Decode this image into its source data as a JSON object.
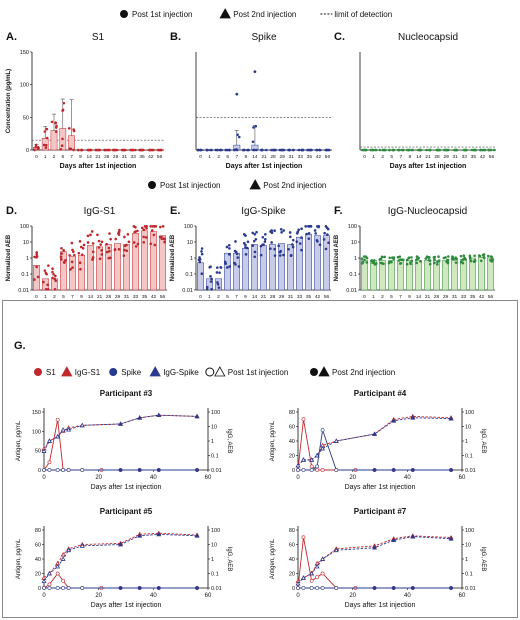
{
  "legends": {
    "top": [
      {
        "symbol": "circle",
        "label": "Post 1st injection"
      },
      {
        "symbol": "triangle",
        "label": "Post 2nd injection"
      },
      {
        "symbol": "dash",
        "label": "limit of detection"
      }
    ],
    "mid": [
      {
        "symbol": "circle",
        "label": "Post 1st injection"
      },
      {
        "symbol": "triangle",
        "label": "Post 2nd injection"
      }
    ],
    "g": [
      {
        "symbol": "circle",
        "color": "#c0282d",
        "label": "S1"
      },
      {
        "symbol": "triangle",
        "color": "#c0282d",
        "label": "IgG-S1"
      },
      {
        "symbol": "circle",
        "color": "#2a3a8f",
        "label": "Spike"
      },
      {
        "symbol": "triangle",
        "color": "#2a3a8f",
        "label": "IgG-Spike"
      },
      {
        "symbol": "open-pair",
        "label": "Post 1st injection"
      },
      {
        "symbol": "filled-pair",
        "label": "Post 2nd injection"
      }
    ]
  },
  "colors": {
    "red": "#c0282d",
    "blue": "#2a3a8f",
    "green": "#2e8b3e",
    "pink": "#f4c6c6",
    "lavender": "#c9cce9",
    "lightgreen": "#cfe8c0"
  },
  "chart_data": [
    {
      "panel": "A.",
      "title": "S1",
      "type": "bar",
      "ylabel": "Concentration (pg/mL)",
      "xlabel": "Days after 1st injection",
      "ylim": [
        0,
        150
      ],
      "yticks": [
        0,
        50,
        100,
        150
      ],
      "lod": 15,
      "categories": [
        "0",
        "1",
        "2",
        "5",
        "7",
        "9",
        "14",
        "21",
        "28",
        "29",
        "31",
        "33",
        "35",
        "42",
        "56"
      ],
      "values": [
        4,
        18,
        30,
        33,
        22,
        0,
        0,
        0,
        0,
        0,
        0,
        0,
        0,
        0,
        0
      ],
      "errors": [
        4,
        18,
        25,
        45,
        55,
        0,
        0,
        0,
        0,
        0,
        0,
        0,
        0,
        0,
        0
      ],
      "color": "red",
      "fill": "pink"
    },
    {
      "panel": "B.",
      "title": "Spike",
      "type": "bar",
      "ylabel": "",
      "xlabel": "Days after 1st injection",
      "ylim": [
        0,
        100
      ],
      "yticks": [],
      "lod": 33,
      "categories": [
        "0",
        "1",
        "2",
        "5",
        "7",
        "9",
        "14",
        "21",
        "28",
        "29",
        "31",
        "33",
        "35",
        "42",
        "56"
      ],
      "values": [
        0,
        0,
        0,
        0,
        5,
        0,
        5,
        0,
        0,
        0,
        0,
        0,
        0,
        0,
        0
      ],
      "errors": [
        0,
        0,
        0,
        0,
        15,
        0,
        20,
        0,
        0,
        0,
        0,
        0,
        0,
        0,
        0
      ],
      "color": "blue",
      "fill": "lavender"
    },
    {
      "panel": "C.",
      "title": "Nucleocapsid",
      "type": "bar",
      "ylabel": "",
      "xlabel": "Days after 1st injection",
      "ylim": [
        0,
        100
      ],
      "yticks": [],
      "lod": 3,
      "categories": [
        "0",
        "1",
        "2",
        "5",
        "7",
        "9",
        "14",
        "21",
        "28",
        "29",
        "31",
        "33",
        "35",
        "42",
        "56"
      ],
      "values": [
        0,
        0,
        0,
        0,
        0,
        0,
        0,
        0,
        0,
        0,
        0,
        0,
        0,
        0,
        0
      ],
      "errors": [
        0,
        0,
        0,
        0,
        0,
        0,
        0,
        0,
        0,
        0,
        0,
        0,
        0,
        0,
        0
      ],
      "color": "green",
      "fill": "lightgreen"
    },
    {
      "panel": "D.",
      "title": "IgG-S1",
      "type": "bar",
      "scale": "log",
      "ylabel": "Normalized AEB",
      "xlabel": "",
      "ylim": [
        0.01,
        100
      ],
      "yticks": [
        "0.01",
        "0.1",
        "1",
        "10",
        "100"
      ],
      "categories": [
        "0",
        "1",
        "2",
        "5",
        "7",
        "9",
        "14",
        "21",
        "28",
        "29",
        "31",
        "33",
        "35",
        "42",
        "56"
      ],
      "values": [
        0.35,
        0.05,
        0.05,
        2.5,
        1.3,
        1.5,
        6,
        5,
        7,
        8,
        7,
        35,
        50,
        45,
        25
      ],
      "color": "red",
      "fill": "pink"
    },
    {
      "panel": "E.",
      "title": "IgG-Spike",
      "type": "bar",
      "scale": "log",
      "ylabel": "Normalized AEB",
      "xlabel": "",
      "ylim": [
        0.01,
        100
      ],
      "yticks": [
        "0.01",
        "0.1",
        "1",
        "10",
        "100"
      ],
      "categories": [
        "0",
        "1",
        "2",
        "5",
        "7",
        "9",
        "14",
        "21",
        "28",
        "29",
        "31",
        "33",
        "35",
        "42",
        "56"
      ],
      "values": [
        0.5,
        0.05,
        0.05,
        2,
        2,
        4,
        7,
        6,
        7,
        8,
        7,
        20,
        30,
        25,
        25
      ],
      "color": "blue",
      "fill": "lavender"
    },
    {
      "panel": "F.",
      "title": "IgG-Nucleocapsid",
      "type": "bar",
      "scale": "log",
      "ylabel": "Normalized AEB",
      "xlabel": "",
      "ylim": [
        0.01,
        100
      ],
      "yticks": [
        "0.01",
        "0.1",
        "1",
        "10",
        "100"
      ],
      "categories": [
        "0",
        "1",
        "2",
        "5",
        "7",
        "9",
        "14",
        "21",
        "28",
        "29",
        "31",
        "33",
        "35",
        "42",
        "56"
      ],
      "values": [
        0.7,
        0.7,
        0.7,
        0.7,
        0.7,
        0.7,
        0.7,
        0.7,
        0.7,
        0.7,
        0.7,
        0.8,
        1.0,
        1.1,
        1.0
      ],
      "color": "green",
      "fill": "lightgreen"
    },
    {
      "panel": "G.",
      "title": "Participant #3",
      "type": "line",
      "ylabel": "Antigen, pg/mL",
      "y2label": "IgG, AEB",
      "xlabel": "Days after 1st injection",
      "xlim": [
        0,
        60
      ],
      "xticks": [
        "0",
        "20",
        "40",
        "60"
      ],
      "ylim": [
        0,
        150
      ],
      "yticks": [
        "0",
        "50",
        "100",
        "150"
      ],
      "y2ticks": [
        "100",
        "10",
        "1",
        "0.1",
        "0.01"
      ],
      "series": [
        {
          "name": "S1",
          "color": "red",
          "style": "solid",
          "x": [
            0,
            2,
            5,
            7,
            9,
            14,
            21,
            28,
            35,
            42,
            56
          ],
          "y": [
            0,
            20,
            130,
            0,
            0,
            0,
            0,
            0,
            0,
            0,
            0
          ]
        },
        {
          "name": "IgG-S1",
          "color": "red",
          "style": "dash",
          "x": [
            0,
            2,
            5,
            7,
            9,
            14,
            28,
            35,
            42,
            56
          ],
          "y2": [
            0.3,
            1,
            2,
            5,
            8,
            12,
            15,
            40,
            60,
            50
          ]
        },
        {
          "name": "Spike",
          "color": "blue",
          "style": "solid",
          "x": [
            0,
            2,
            5,
            7,
            9,
            14,
            28,
            35,
            42,
            56
          ],
          "y": [
            0,
            0,
            0,
            0,
            0,
            0,
            0,
            0,
            0,
            0
          ]
        },
        {
          "name": "IgG-Spike",
          "color": "blue",
          "style": "dash",
          "x": [
            0,
            2,
            5,
            7,
            9,
            14,
            28,
            35,
            42,
            56
          ],
          "y2": [
            0.2,
            1,
            2,
            6,
            6,
            12,
            15,
            40,
            60,
            50
          ]
        }
      ]
    },
    {
      "panel": "",
      "title": "Participant #4",
      "type": "line",
      "ylabel": "Antigen, pg/mL",
      "y2label": "IgG, AEB",
      "xlabel": "Days after 1st injection",
      "xlim": [
        0,
        60
      ],
      "xticks": [
        "0",
        "20",
        "40",
        "60"
      ],
      "ylim": [
        0,
        80
      ],
      "yticks": [
        "0",
        "20",
        "40",
        "60",
        "80"
      ],
      "y2ticks": [
        "100",
        "10",
        "1",
        "0.1",
        "0.01"
      ],
      "series": [
        {
          "name": "S1",
          "color": "red",
          "style": "solid",
          "x": [
            0,
            2,
            5,
            7,
            9,
            14,
            21,
            28,
            35,
            42,
            56
          ],
          "y": [
            0,
            70,
            5,
            0,
            0,
            0,
            0,
            0,
            0,
            0,
            0
          ]
        },
        {
          "name": "IgG-S1",
          "color": "red",
          "style": "dash",
          "x": [
            0,
            2,
            5,
            7,
            9,
            14,
            28,
            35,
            42,
            56
          ],
          "y2": [
            0.02,
            0.05,
            0.05,
            0.1,
            0.5,
            1,
            3,
            30,
            50,
            40
          ]
        },
        {
          "name": "Spike",
          "color": "blue",
          "style": "solid",
          "x": [
            0,
            2,
            5,
            7,
            9,
            14,
            28,
            35,
            42,
            56
          ],
          "y": [
            0,
            0,
            0,
            5,
            55,
            0,
            0,
            0,
            0,
            0
          ]
        },
        {
          "name": "IgG-Spike",
          "color": "blue",
          "style": "dash",
          "x": [
            0,
            2,
            5,
            7,
            9,
            14,
            28,
            35,
            42,
            56
          ],
          "y2": [
            0.02,
            0.05,
            0.05,
            0.1,
            0.3,
            1,
            3,
            25,
            40,
            35
          ]
        }
      ]
    },
    {
      "panel": "",
      "title": "Participant #5",
      "type": "line",
      "ylabel": "Antigen, pg/mL",
      "y2label": "IgG, AEB",
      "xlabel": "Days after 1st injection",
      "xlim": [
        0,
        60
      ],
      "xticks": [
        "0",
        "20",
        "40",
        "60"
      ],
      "ylim": [
        0,
        80
      ],
      "yticks": [
        "0",
        "20",
        "40",
        "60",
        "80"
      ],
      "y2ticks": [
        "100",
        "10",
        "1",
        "0.1",
        "0.01"
      ],
      "series": [
        {
          "name": "S1",
          "color": "red",
          "style": "solid",
          "x": [
            0,
            2,
            5,
            7,
            9,
            14,
            21,
            28,
            35,
            42,
            56
          ],
          "y": [
            0,
            5,
            20,
            10,
            0,
            0,
            0,
            0,
            0,
            0,
            0
          ]
        },
        {
          "name": "IgG-S1",
          "color": "red",
          "style": "dash",
          "x": [
            0,
            2,
            5,
            7,
            9,
            14,
            28,
            35,
            42,
            56
          ],
          "y2": [
            0.05,
            0.1,
            0.5,
            2,
            5,
            10,
            12,
            50,
            60,
            45
          ]
        },
        {
          "name": "Spike",
          "color": "blue",
          "style": "solid",
          "x": [
            0,
            2,
            5,
            7,
            9,
            14,
            28,
            35,
            42,
            56
          ],
          "y": [
            0,
            0,
            0,
            0,
            0,
            0,
            0,
            0,
            0,
            0
          ]
        },
        {
          "name": "IgG-Spike",
          "color": "blue",
          "style": "dash",
          "x": [
            0,
            2,
            5,
            7,
            9,
            14,
            28,
            35,
            42,
            56
          ],
          "y2": [
            0.03,
            0.1,
            0.3,
            1,
            4,
            8,
            10,
            40,
            50,
            40
          ]
        }
      ]
    },
    {
      "panel": "",
      "title": "Participant #7",
      "type": "line",
      "ylabel": "Antigen, pg/mL",
      "y2label": "IgG, AEB",
      "xlabel": "Days after 1st injection",
      "xlim": [
        0,
        60
      ],
      "xticks": [
        "0",
        "20",
        "40",
        "60"
      ],
      "ylim": [
        0,
        80
      ],
      "yticks": [
        "0",
        "20",
        "40",
        "60",
        "80"
      ],
      "y2ticks": [
        "100",
        "10",
        "1",
        "0.1",
        "0.01"
      ],
      "series": [
        {
          "name": "S1",
          "color": "red",
          "style": "solid",
          "x": [
            0,
            2,
            5,
            7,
            9,
            14,
            21,
            28,
            35,
            42,
            56
          ],
          "y": [
            0,
            70,
            10,
            15,
            20,
            0,
            0,
            0,
            0,
            0,
            0
          ]
        },
        {
          "name": "IgG-S1",
          "color": "red",
          "style": "dash",
          "x": [
            0,
            2,
            5,
            7,
            9,
            14,
            28,
            35,
            42,
            56
          ],
          "y2": [
            0.03,
            0.05,
            0.1,
            0.5,
            1,
            5,
            8,
            25,
            40,
            30
          ]
        },
        {
          "name": "Spike",
          "color": "blue",
          "style": "solid",
          "x": [
            0,
            2,
            5,
            7,
            9,
            14,
            28,
            35,
            42,
            56
          ],
          "y": [
            0,
            0,
            0,
            0,
            0,
            0,
            0,
            0,
            0,
            0
          ]
        },
        {
          "name": "IgG-Spike",
          "color": "blue",
          "style": "dash",
          "x": [
            0,
            2,
            5,
            7,
            9,
            14,
            28,
            35,
            42,
            56
          ],
          "y2": [
            0.02,
            0.05,
            0.1,
            0.3,
            1,
            4,
            6,
            20,
            35,
            25
          ]
        }
      ]
    }
  ]
}
